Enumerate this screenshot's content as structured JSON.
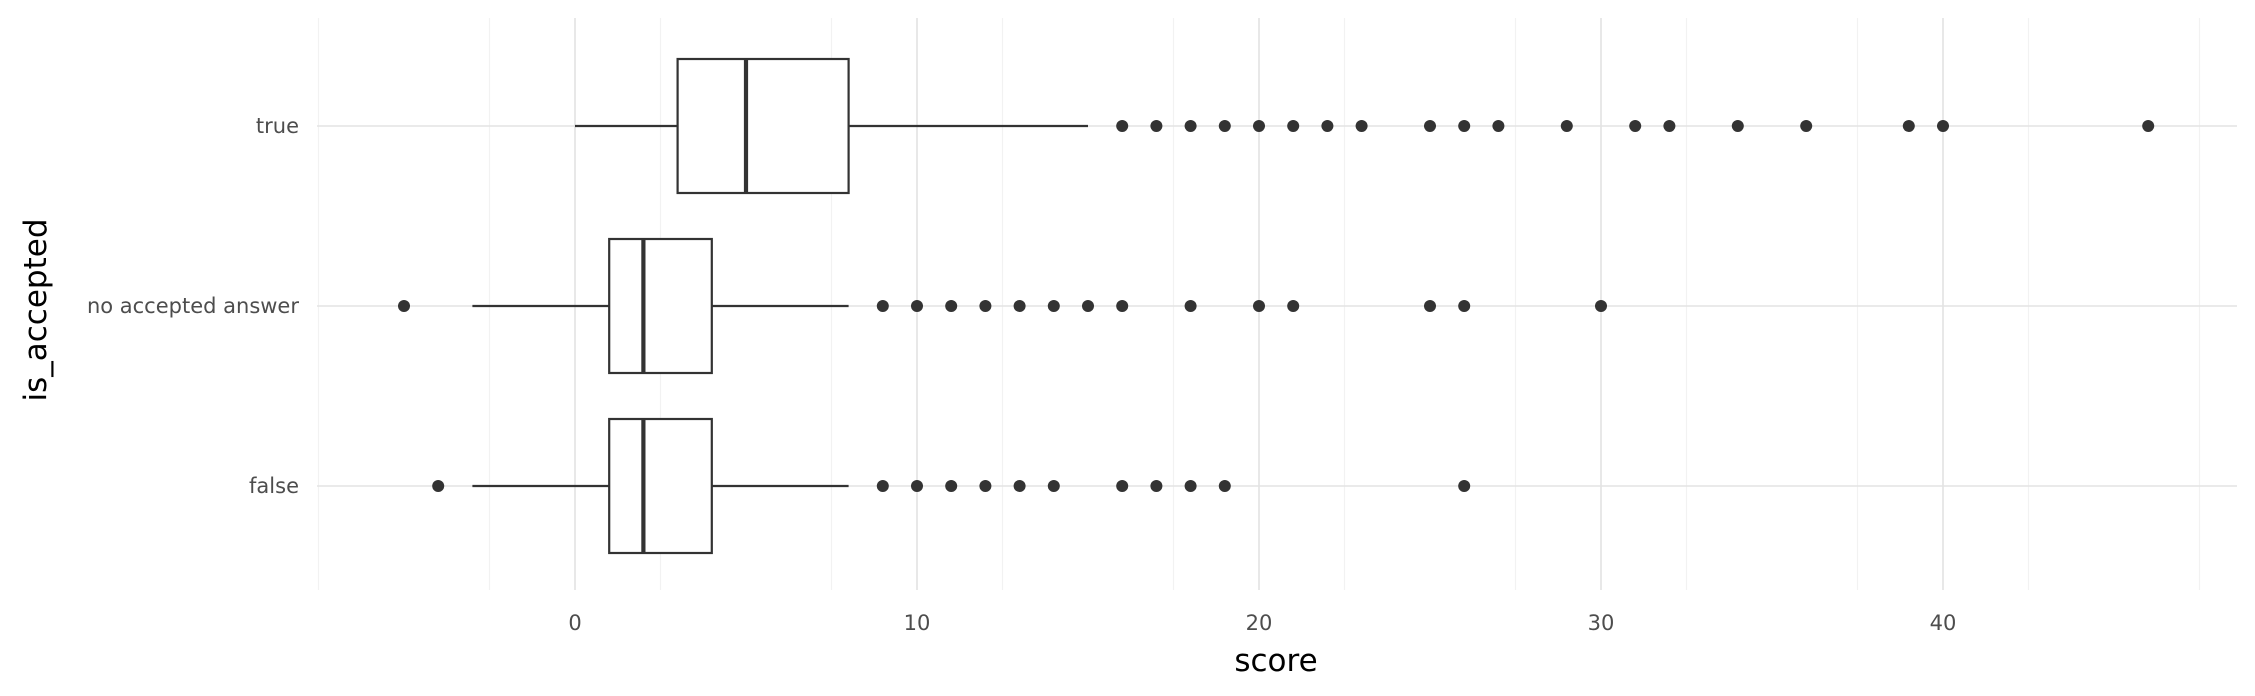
{
  "chart_data": {
    "type": "boxplot",
    "orientation": "horizontal",
    "xlabel": "score",
    "ylabel": "is_accepted",
    "xlim": [
      -7.5,
      48.5
    ],
    "x_ticks": [
      0,
      10,
      20,
      30,
      40
    ],
    "x_tick_labels": [
      "0",
      "10",
      "20",
      "30",
      "40"
    ],
    "grid": true,
    "categories": [
      "true",
      "no accepted answer",
      "false"
    ],
    "series": [
      {
        "category": "true",
        "whisker_low": 0,
        "q1": 3,
        "median": 5,
        "q3": 8,
        "whisker_high": 15,
        "outliers": [
          16,
          17,
          18,
          19,
          20,
          21,
          22,
          23,
          25,
          26,
          27,
          29,
          31,
          32,
          34,
          36,
          39,
          40,
          46
        ]
      },
      {
        "category": "no accepted answer",
        "whisker_low": -3,
        "q1": 1,
        "median": 2,
        "q3": 4,
        "whisker_high": 8,
        "outliers": [
          -5,
          9,
          10,
          11,
          12,
          13,
          14,
          15,
          16,
          18,
          20,
          21,
          25,
          26,
          30
        ]
      },
      {
        "category": "false",
        "whisker_low": -3,
        "q1": 1,
        "median": 2,
        "q3": 4,
        "whisker_high": 8,
        "outliers": [
          -4,
          9,
          10,
          11,
          12,
          13,
          14,
          16,
          17,
          18,
          19,
          26
        ]
      }
    ],
    "colors": {
      "box_stroke": "#333333",
      "box_fill": "#ffffff",
      "grid": "#e3e3e3",
      "tick_label": "#4d4d4d"
    }
  }
}
